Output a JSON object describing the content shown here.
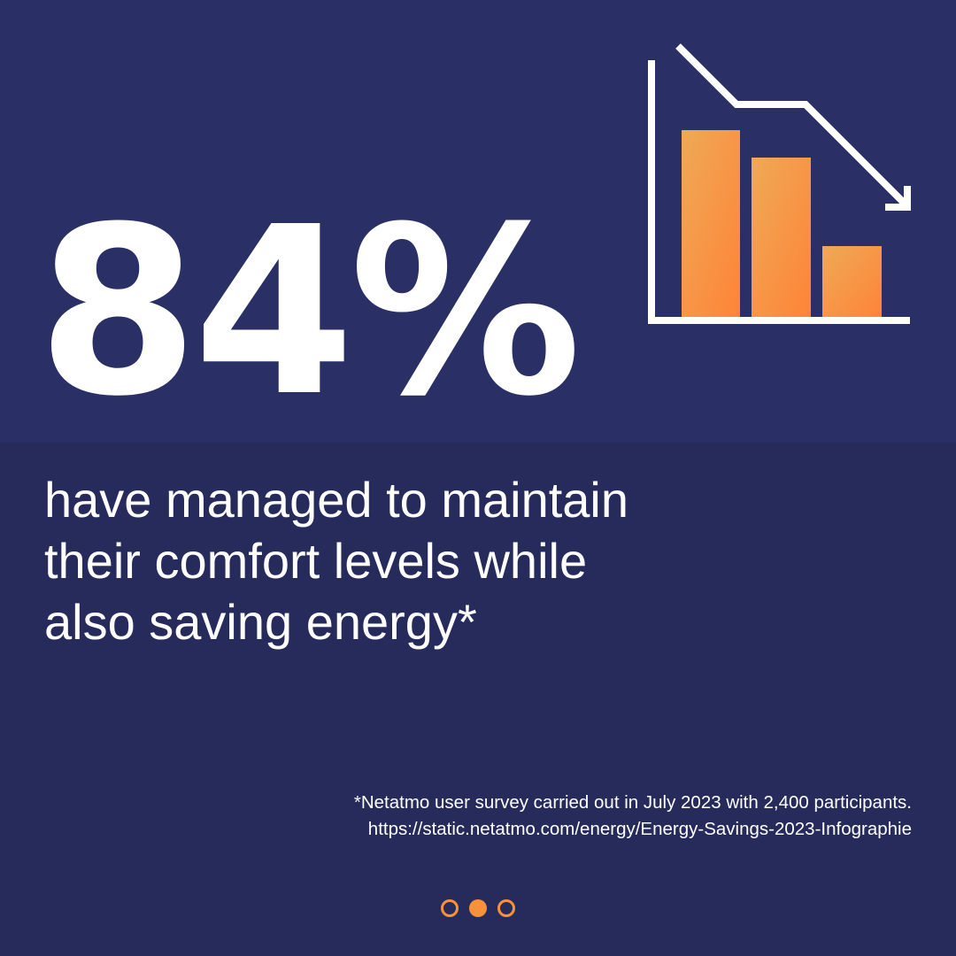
{
  "stat": {
    "value": "84%"
  },
  "description": {
    "lines": [
      "have managed to maintain",
      "their comfort levels while",
      "also saving energy*"
    ]
  },
  "footnote": {
    "lines": [
      "*Netatmo user survey carried out in July 2023 with 2,400 participants.",
      "https://static.netatmo.com/energy/Energy-Savings-2023-Infographie"
    ]
  },
  "colors": {
    "background": "#272b5c",
    "accent": "#f7913a",
    "text": "#ffffff"
  },
  "icon": {
    "name": "declining-bar-chart-icon"
  },
  "pagination": {
    "total": 3,
    "active": 2
  }
}
